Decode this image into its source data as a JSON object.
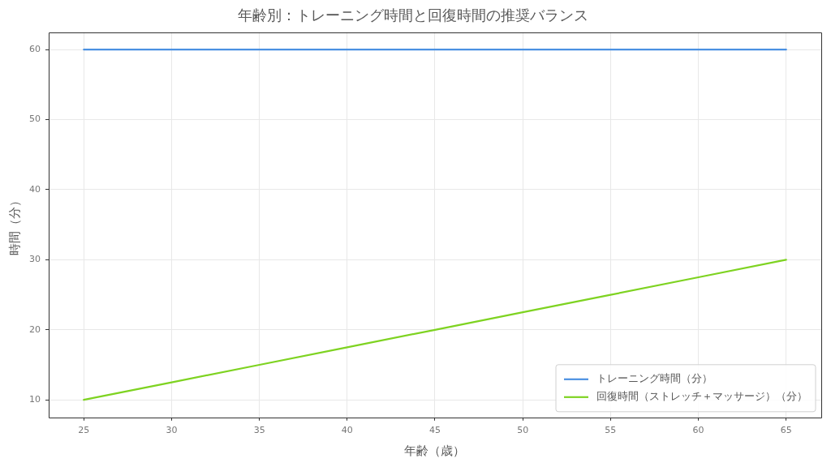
{
  "chart_data": {
    "type": "line",
    "title": "年齢別：トレーニング時間と回復時間の推奨バランス",
    "xlabel": "年齢（歳）",
    "ylabel": "時間（分）",
    "x": [
      25,
      30,
      35,
      40,
      45,
      50,
      55,
      60,
      65
    ],
    "series": [
      {
        "name": "トレーニング時間（分）",
        "color": "#4a90e2",
        "values": [
          60,
          60,
          60,
          60,
          60,
          60,
          60,
          60,
          60
        ]
      },
      {
        "name": "回復時間（ストレッチ＋マッサージ）（分）",
        "color": "#7ed321",
        "values": [
          10,
          12.5,
          15,
          17.5,
          20,
          22.5,
          25,
          27.5,
          30
        ]
      }
    ],
    "xlim": [
      23,
      67
    ],
    "ylim": [
      7.5,
      62.5
    ],
    "xticks": [
      25,
      30,
      35,
      40,
      45,
      50,
      55,
      60,
      65
    ],
    "yticks": [
      10,
      20,
      30,
      40,
      50,
      60
    ],
    "grid": true,
    "legend": "bottom right"
  }
}
